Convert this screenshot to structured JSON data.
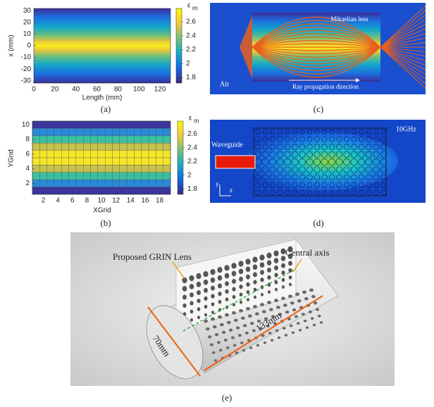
{
  "panels": {
    "a": {
      "caption": "(a)",
      "x_label": "Length (mm)",
      "y_label": "x (mm)",
      "colorbar_symbol": "ε",
      "colorbar_subscript": "m",
      "xlim": [
        0,
        130
      ],
      "xticks": [
        0,
        20,
        40,
        60,
        80,
        100,
        120
      ],
      "ylim": [
        -32,
        32
      ],
      "yticks": [
        30,
        20,
        10,
        0,
        -10,
        -20,
        -30
      ],
      "clim": [
        1.72,
        2.79
      ],
      "cticks": [
        2.6,
        2.4,
        2.2,
        2,
        1.8
      ]
    },
    "b": {
      "caption": "(b)",
      "x_label": "XGrid",
      "y_label": "YGrid",
      "colorbar_symbol": "ε",
      "colorbar_subscript": "m",
      "xlim": [
        0.5,
        19.5
      ],
      "xticks": [
        2,
        4,
        6,
        8,
        10,
        12,
        14,
        16,
        18
      ],
      "ylim": [
        0.5,
        10.5
      ],
      "yticks": [
        2,
        4,
        6,
        8,
        10
      ],
      "clim": [
        1.72,
        2.79
      ],
      "cticks": [
        2.6,
        2.4,
        2.2,
        2,
        1.8
      ]
    },
    "c": {
      "caption": "(c)",
      "lens_label": "Mikaelian lens",
      "medium_label": "Air",
      "direction_label": "Ray propagation direction"
    },
    "d": {
      "caption": "(d)",
      "source_label": "Waveguide",
      "frequency_label": "10GHz",
      "axis_y": "y",
      "axis_z": "z"
    },
    "e": {
      "caption": "(e)",
      "lens_label": "Proposed GRIN Lens",
      "axis_label": "Central axis",
      "diameter_label": "70mm",
      "length_label": "133mm"
    }
  }
}
